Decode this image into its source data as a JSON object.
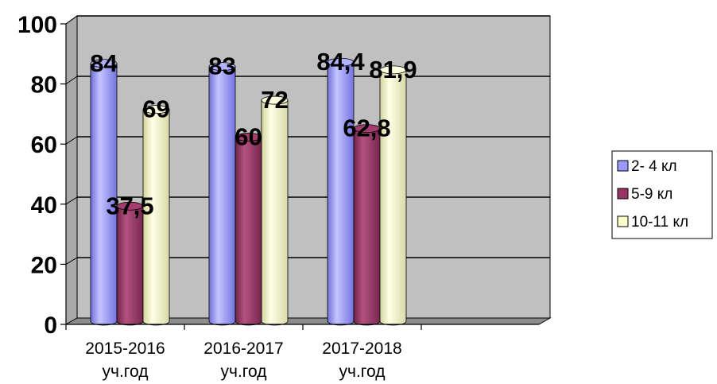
{
  "chart_data": {
    "type": "bar",
    "style": "3d-cylinder",
    "categories": [
      "2015-2016 уч.год",
      "2016-2017 уч.год",
      "2017-2018 уч.год"
    ],
    "category_lines": [
      [
        "2015-2016",
        "уч.год"
      ],
      [
        "2016-2017",
        "уч.год"
      ],
      [
        "2017-2018",
        "уч.год"
      ]
    ],
    "series": [
      {
        "name": "2- 4 кл",
        "values": [
          84,
          83,
          84.4
        ],
        "labels": [
          "84",
          "83",
          "84,4"
        ],
        "color": "#9999ff"
      },
      {
        "name": "5-9 кл",
        "values": [
          37.5,
          60,
          62.8
        ],
        "labels": [
          "37,5",
          "60",
          "62,8"
        ],
        "color": "#993366"
      },
      {
        "name": "10-11 кл",
        "values": [
          69,
          72,
          81.9
        ],
        "labels": [
          "69",
          "72",
          "81,9"
        ],
        "color": "#ffffcc"
      }
    ],
    "ylim": [
      0,
      100
    ],
    "yticks": [
      0,
      20,
      40,
      60,
      80,
      100
    ],
    "grid": true,
    "plot_background": "#c0c0c0",
    "legend_position": "right"
  }
}
